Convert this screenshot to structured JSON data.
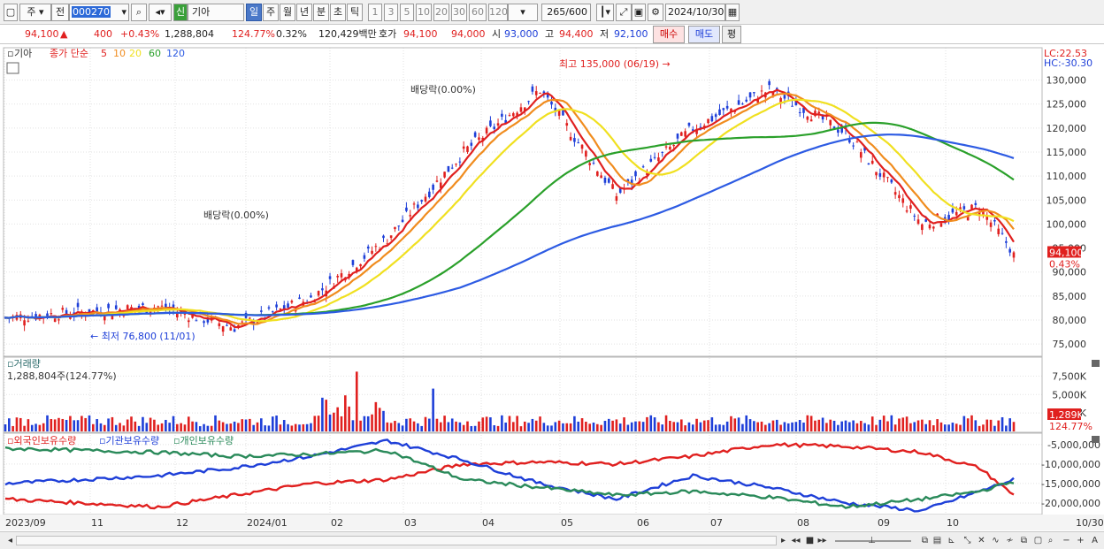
{
  "toolbar": {
    "market_btn": "주",
    "prev_btn": "전",
    "code_value": "000270",
    "new_badge": "신",
    "name_value": "기아",
    "periods": [
      "일",
      "주",
      "월",
      "년",
      "분",
      "초",
      "틱"
    ],
    "active_period": "일",
    "counts": [
      "1",
      "3",
      "5",
      "10",
      "20",
      "30",
      "60",
      "120"
    ],
    "bars_shown": "265",
    "bars_total": "/600",
    "date": "2024/10/30"
  },
  "quote": {
    "price": "94,100",
    "change": "400",
    "change_pct": "+0.43%",
    "volume": "1,288,804",
    "volume_ratio": "124.77%",
    "turnover": "0.32%",
    "amount": "120,429백만",
    "ask_label": "호가",
    "ask1": "94,100",
    "ask2": "94,000",
    "open_label": "시",
    "open": "93,000",
    "high_label": "고",
    "high": "94,400",
    "low_label": "저",
    "low": "92,100",
    "buy": "매수",
    "sell": "매도",
    "avg": "평"
  },
  "legend": {
    "symbol": "기아",
    "desc": "종가 단순",
    "mas": [
      "5",
      "10",
      "20",
      "60",
      "120"
    ],
    "ma_colors": [
      "#e0201f",
      "#f08c1e",
      "#f0e020",
      "#2aa02a",
      "#2d5be3"
    ],
    "lc": "LC:22.53",
    "hc": "HC:-30.30"
  },
  "annotations": {
    "high": "최고 135,000 (06/19)",
    "low": "최저 76,800 (11/01)",
    "div1": "배당락(0.00%)",
    "div2": "배당락(0.00%)"
  },
  "price_axis": [
    "130,000",
    "125,000",
    "120,000",
    "115,000",
    "110,000",
    "105,000",
    "100,000",
    "95,000",
    "90,000",
    "85,000",
    "80,000",
    "75,000"
  ],
  "last_price_tag": "94,100",
  "last_pct_tag": "0.43%",
  "volume_panel": {
    "title": "거래량",
    "value": "1,288,804주(124.77%)",
    "axis": [
      "7,500K",
      "5,000K",
      "2,500K"
    ],
    "last_tag": "1,289K",
    "last_pct": "124.77%"
  },
  "holdings_panel": {
    "titles": [
      "외국인보유수량",
      "기관보유수량",
      "개인보유수량"
    ],
    "title_colors": [
      "#e0201f",
      "#1e3fd8",
      "#2a8a5a"
    ],
    "axis": [
      "-5,000,000",
      "-10,000,000",
      "-15,000,000",
      "-20,000,000"
    ]
  },
  "x_axis": [
    "2023/09",
    "11",
    "12",
    "2024/01",
    "02",
    "03",
    "04",
    "05",
    "06",
    "07",
    "08",
    "09",
    "10"
  ],
  "x_axis_last": "10/30",
  "colors": {
    "up": "#e0201f",
    "down": "#1e3fd8",
    "grid": "#e2e2e2",
    "axis": "#888888"
  },
  "chart_data": {
    "type": "candlestick",
    "title": "기아",
    "ylim": [
      73000,
      136000
    ],
    "y_unit": "KRW",
    "annotated_high": 135000,
    "annotated_low": 76800,
    "last": {
      "open": 93000,
      "high": 94400,
      "low": 92100,
      "close": 94100
    },
    "close_approx": {
      "x": [
        "2023/09",
        "2023/10",
        "2023/11",
        "2023/12",
        "2024/01",
        "2024/02",
        "2024/03",
        "2024/04",
        "2024/05",
        "2024/06",
        "2024/07",
        "2024/08",
        "2024/09",
        "2024/10/30"
      ],
      "y": [
        80500,
        82800,
        78500,
        84500,
        97000,
        115000,
        128000,
        106000,
        120000,
        128000,
        119000,
        100000,
        103500,
        94100
      ]
    },
    "volume_axis_max": 7500000,
    "holdings_axis": [
      -5000000,
      -20000000
    ]
  }
}
